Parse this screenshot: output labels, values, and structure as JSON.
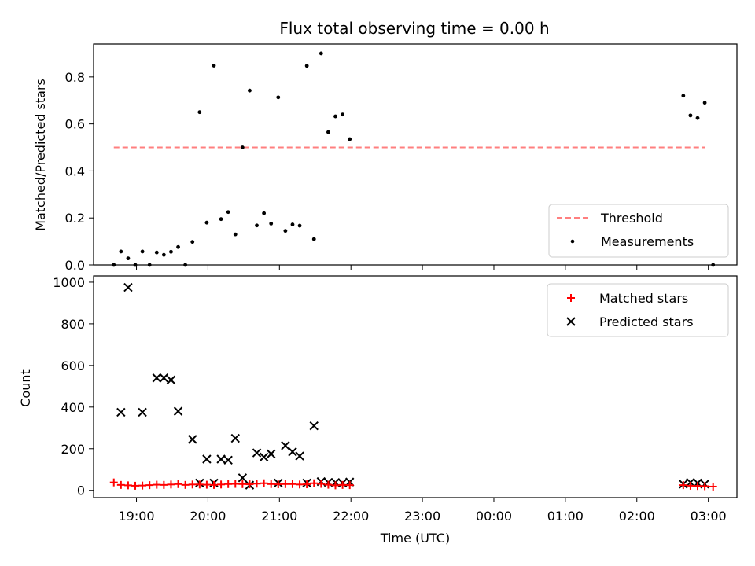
{
  "chart_data": [
    {
      "type": "scatter",
      "title": "Flux total observing time = 0.00 h",
      "xlabel": "",
      "ylabel": "Matched/Predicted stars",
      "xlim": [
        "18:24",
        "03:24"
      ],
      "ylim": [
        0,
        0.94
      ],
      "yticks": [
        "0.0",
        "0.2",
        "0.4",
        "0.6",
        "0.8"
      ],
      "legend": "bottom-right",
      "grid": false,
      "threshold": {
        "name": "Threshold",
        "y": 0.5,
        "x_start": "18:41",
        "x_end": "02:57",
        "color": "#ff7f7f"
      },
      "series": [
        {
          "name": "Measurements",
          "color": "#000000",
          "points": [
            [
              "18:41",
              0.0
            ],
            [
              "18:47",
              0.057
            ],
            [
              "18:53",
              0.028
            ],
            [
              "18:59",
              0.0
            ],
            [
              "19:05",
              0.057
            ],
            [
              "19:11",
              0.0
            ],
            [
              "19:17",
              0.053
            ],
            [
              "19:23",
              0.043
            ],
            [
              "19:29",
              0.056
            ],
            [
              "19:35",
              0.076
            ],
            [
              "19:41",
              0.0
            ],
            [
              "19:47",
              0.098
            ],
            [
              "19:53",
              0.65
            ],
            [
              "19:59",
              0.18
            ],
            [
              "20:05",
              0.848
            ],
            [
              "20:11",
              0.195
            ],
            [
              "20:17",
              0.225
            ],
            [
              "20:23",
              0.13
            ],
            [
              "20:29",
              0.5
            ],
            [
              "20:35",
              0.742
            ],
            [
              "20:41",
              0.168
            ],
            [
              "20:47",
              0.22
            ],
            [
              "20:53",
              0.176
            ],
            [
              "20:59",
              0.713
            ],
            [
              "21:05",
              0.145
            ],
            [
              "21:11",
              0.172
            ],
            [
              "21:17",
              0.167
            ],
            [
              "21:23",
              0.847
            ],
            [
              "21:29",
              0.11
            ],
            [
              "21:35",
              0.9
            ],
            [
              "21:41",
              0.565
            ],
            [
              "21:47",
              0.632
            ],
            [
              "21:53",
              0.64
            ],
            [
              "21:59",
              0.535
            ],
            [
              "02:39",
              0.72
            ],
            [
              "02:45",
              0.636
            ],
            [
              "02:51",
              0.625
            ],
            [
              "02:57",
              0.69
            ],
            [
              "03:04",
              0.0
            ]
          ]
        }
      ]
    },
    {
      "type": "scatter",
      "title": "",
      "xlabel": "Time (UTC)",
      "ylabel": "Count",
      "xlim": [
        "18:24",
        "03:24"
      ],
      "ylim": [
        -35,
        1030
      ],
      "yticks": [
        "0",
        "200",
        "400",
        "600",
        "800",
        "1000"
      ],
      "xticks": [
        "19:00",
        "20:00",
        "21:00",
        "22:00",
        "23:00",
        "00:00",
        "01:00",
        "02:00",
        "03:00"
      ],
      "legend": "top-right",
      "grid": false,
      "series": [
        {
          "name": "Matched stars",
          "marker": "plus",
          "color": "#ff0000",
          "points": [
            [
              "18:41",
              38
            ],
            [
              "18:47",
              26
            ],
            [
              "18:53",
              24
            ],
            [
              "18:59",
              22
            ],
            [
              "19:05",
              23
            ],
            [
              "19:11",
              25
            ],
            [
              "19:17",
              27
            ],
            [
              "19:23",
              26
            ],
            [
              "19:29",
              28
            ],
            [
              "19:35",
              30
            ],
            [
              "19:41",
              26
            ],
            [
              "19:47",
              28
            ],
            [
              "19:53",
              28
            ],
            [
              "19:59",
              27
            ],
            [
              "20:05",
              26
            ],
            [
              "20:11",
              28
            ],
            [
              "20:17",
              30
            ],
            [
              "20:23",
              31
            ],
            [
              "20:29",
              30
            ],
            [
              "20:35",
              29
            ],
            [
              "20:41",
              32
            ],
            [
              "20:47",
              34
            ],
            [
              "20:53",
              30
            ],
            [
              "20:59",
              29
            ],
            [
              "21:05",
              30
            ],
            [
              "21:11",
              30
            ],
            [
              "21:17",
              28
            ],
            [
              "21:23",
              29
            ],
            [
              "21:29",
              34
            ],
            [
              "21:35",
              31
            ],
            [
              "21:41",
              27
            ],
            [
              "21:47",
              24
            ],
            [
              "21:53",
              26
            ],
            [
              "21:59",
              25
            ],
            [
              "02:39",
              25
            ],
            [
              "02:45",
              22
            ],
            [
              "02:51",
              21
            ],
            [
              "02:57",
              20
            ],
            [
              "03:04",
              18
            ]
          ]
        },
        {
          "name": "Predicted stars",
          "marker": "x",
          "color": "#000000",
          "points": [
            [
              "18:47",
              375
            ],
            [
              "18:53",
              975
            ],
            [
              "19:05",
              375
            ],
            [
              "19:17",
              540
            ],
            [
              "19:23",
              540
            ],
            [
              "19:29",
              530
            ],
            [
              "19:35",
              380
            ],
            [
              "19:47",
              245
            ],
            [
              "19:53",
              35
            ],
            [
              "19:59",
              150
            ],
            [
              "20:05",
              35
            ],
            [
              "20:11",
              150
            ],
            [
              "20:17",
              145
            ],
            [
              "20:23",
              250
            ],
            [
              "20:29",
              60
            ],
            [
              "20:35",
              25
            ],
            [
              "20:41",
              180
            ],
            [
              "20:47",
              160
            ],
            [
              "20:53",
              175
            ],
            [
              "20:59",
              35
            ],
            [
              "21:05",
              215
            ],
            [
              "21:11",
              185
            ],
            [
              "21:17",
              165
            ],
            [
              "21:23",
              35
            ],
            [
              "21:29",
              310
            ],
            [
              "21:35",
              42
            ],
            [
              "21:41",
              38
            ],
            [
              "21:47",
              38
            ],
            [
              "21:53",
              35
            ],
            [
              "21:59",
              40
            ],
            [
              "02:39",
              30
            ],
            [
              "02:45",
              38
            ],
            [
              "02:51",
              35
            ],
            [
              "02:57",
              30
            ]
          ]
        }
      ]
    }
  ]
}
